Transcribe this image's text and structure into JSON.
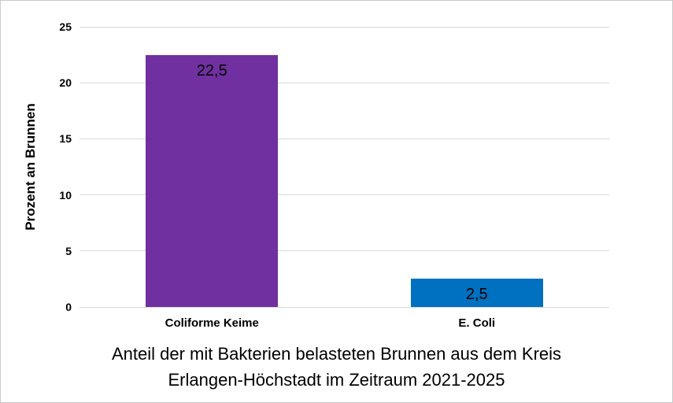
{
  "chart_data": {
    "type": "bar",
    "title": "Anteil der mit Bakterien belasteten Brunnen aus dem Kreis Erlangen-Höchstadt im Zeitraum 2021-2025",
    "title_lines": [
      "Anteil der mit Bakterien belasteten Brunnen aus dem Kreis",
      "Erlangen-Höchstadt im Zeitraum 2021-2025"
    ],
    "ylabel": "Prozent an Brunnen",
    "xlabel": "",
    "categories": [
      "Coliforme Keime",
      "E. Coli"
    ],
    "values": [
      22.5,
      2.5
    ],
    "value_labels": [
      "22,5",
      "2,5"
    ],
    "bar_colors": [
      "#7030A0",
      "#0070C0"
    ],
    "ylim": [
      0,
      25
    ],
    "yticks": [
      0,
      5,
      10,
      15,
      20,
      25
    ],
    "ytick_labels": [
      "0",
      "5",
      "10",
      "15",
      "20",
      "25"
    ],
    "grid": true,
    "gridline_color": "#D9D9D9",
    "legend_position": "none",
    "background_color": "#FFFFFF",
    "border_color": "#C9C9C9",
    "text_color": "#000000"
  }
}
